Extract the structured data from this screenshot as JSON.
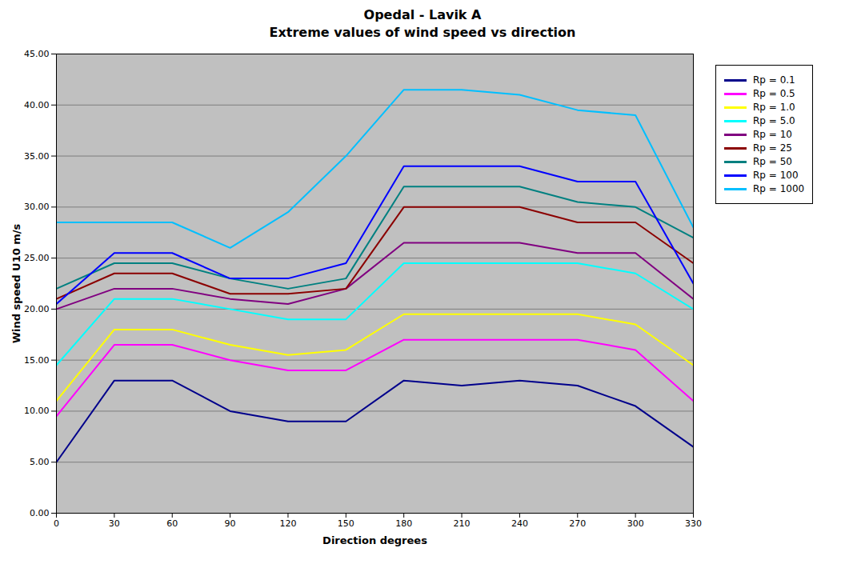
{
  "chart_data": {
    "type": "line",
    "title": "Opedal - Lavik A",
    "subtitle": "Extreme values of wind speed vs direction",
    "x_label": "Direction degrees",
    "y_label": "Wind speed U10 m/s",
    "x": [
      0,
      30,
      60,
      90,
      120,
      150,
      180,
      210,
      240,
      270,
      300,
      330
    ],
    "xlim": [
      0,
      330
    ],
    "xticks": [
      0,
      30,
      60,
      90,
      120,
      150,
      180,
      210,
      240,
      270,
      300,
      330
    ],
    "ylim": [
      0.0,
      45.0
    ],
    "yticks": [
      {
        "value": 0,
        "label": "0.00"
      },
      {
        "value": 5,
        "label": "5.00"
      },
      {
        "value": 10,
        "label": "10.00"
      },
      {
        "value": 15,
        "label": "15.00"
      },
      {
        "value": 20,
        "label": "20.00"
      },
      {
        "value": 25,
        "label": "25.00"
      },
      {
        "value": 30,
        "label": "30.00"
      },
      {
        "value": 35,
        "label": "35.00"
      },
      {
        "value": 40,
        "label": "40.00"
      },
      {
        "value": 45,
        "label": "45.00"
      }
    ],
    "grid": "y",
    "legend": "right",
    "series": [
      {
        "name": "Rp = 0.1",
        "color": "#00008B",
        "values": [
          5.0,
          13.0,
          13.0,
          10.0,
          9.0,
          9.0,
          13.0,
          12.5,
          13.0,
          12.5,
          10.5,
          6.5
        ]
      },
      {
        "name": "Rp = 0.5",
        "color": "#FF00FF",
        "values": [
          9.5,
          16.5,
          16.5,
          15.0,
          14.0,
          14.0,
          17.0,
          17.0,
          17.0,
          17.0,
          16.0,
          11.0
        ]
      },
      {
        "name": "Rp = 1.0",
        "color": "#FFFF00",
        "values": [
          11.0,
          18.0,
          18.0,
          16.5,
          15.5,
          16.0,
          19.5,
          19.5,
          19.5,
          19.5,
          18.5,
          14.5
        ]
      },
      {
        "name": "Rp = 5.0",
        "color": "#00FFFF",
        "values": [
          14.5,
          21.0,
          21.0,
          20.0,
          19.0,
          19.0,
          24.5,
          24.5,
          24.5,
          24.5,
          23.5,
          20.0
        ]
      },
      {
        "name": "Rp = 10",
        "color": "#800080",
        "values": [
          20.0,
          22.0,
          22.0,
          21.0,
          20.5,
          22.0,
          26.5,
          26.5,
          26.5,
          25.5,
          25.5,
          21.0
        ]
      },
      {
        "name": "Rp = 25",
        "color": "#8B0000",
        "values": [
          21.0,
          23.5,
          23.5,
          21.5,
          21.5,
          22.0,
          30.0,
          30.0,
          30.0,
          28.5,
          28.5,
          24.5
        ]
      },
      {
        "name": "Rp = 50",
        "color": "#008080",
        "values": [
          22.0,
          24.5,
          24.5,
          23.0,
          22.0,
          23.0,
          32.0,
          32.0,
          32.0,
          30.5,
          30.0,
          27.0
        ]
      },
      {
        "name": "Rp = 100",
        "color": "#0000FF",
        "values": [
          20.5,
          25.5,
          25.5,
          23.0,
          23.0,
          24.5,
          34.0,
          34.0,
          34.0,
          32.5,
          32.5,
          22.5
        ]
      },
      {
        "name": "Rp = 1000",
        "color": "#00BFFF",
        "values": [
          28.5,
          28.5,
          28.5,
          26.0,
          29.5,
          35.0,
          41.5,
          41.5,
          41.0,
          39.5,
          39.0,
          28.0
        ]
      }
    ]
  }
}
